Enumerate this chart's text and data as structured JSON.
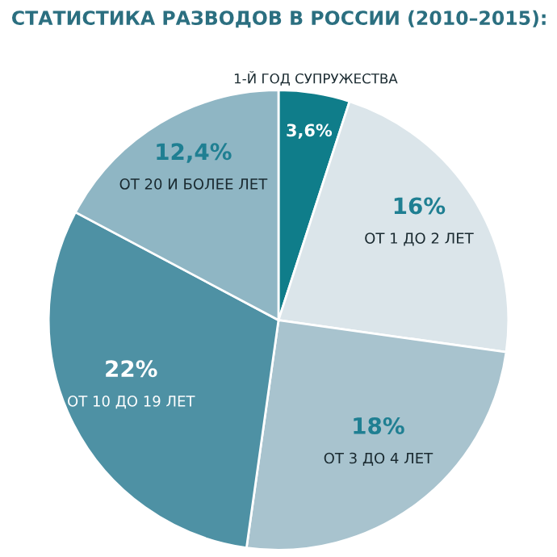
{
  "chart_data": {
    "type": "pie",
    "title": "СТАТИСТИКА РАЗВОДОВ В РОССИИ (2010–2015):",
    "categories": [
      "1-Й ГОД СУПРУЖЕСТВА",
      "ОТ 1 ДО 2 ЛЕТ",
      "ОТ 3 ДО 4 ЛЕТ",
      "ОТ 10 ДО 19 ЛЕТ",
      "ОТ 20 И БОЛЕЕ ЛЕТ"
    ],
    "values": [
      3.6,
      16,
      18,
      22,
      12.4
    ],
    "value_labels": [
      "3,6%",
      "16%",
      "18%",
      "22%",
      "12,4%"
    ],
    "colors": [
      "#0f7d8a",
      "#dbe5ea",
      "#a8c3ce",
      "#4e91a4",
      "#8fb6c4"
    ]
  }
}
